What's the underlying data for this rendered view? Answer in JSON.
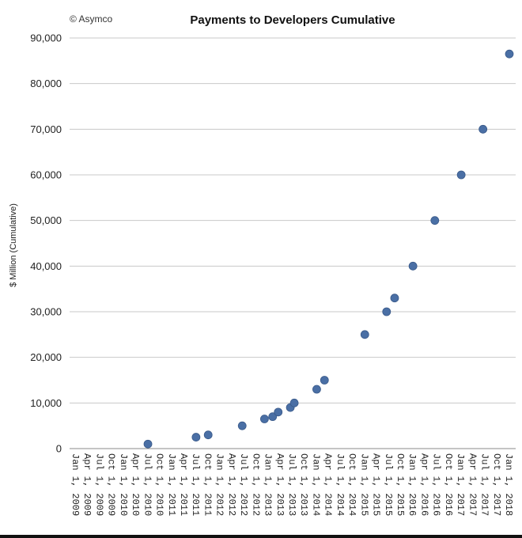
{
  "watermark": "© Asymco",
  "chart_data": {
    "type": "scatter",
    "title": "Payments to Developers Cumulative",
    "xlabel": "",
    "ylabel": "$ Million (Cumulative)",
    "ylim": [
      0,
      90000
    ],
    "y_ticks": [
      "0",
      "10,000",
      "20,000",
      "30,000",
      "40,000",
      "50,000",
      "60,000",
      "70,000",
      "80,000",
      "90,000"
    ],
    "y_tick_values": [
      0,
      10000,
      20000,
      30000,
      40000,
      50000,
      60000,
      70000,
      80000,
      90000
    ],
    "x_ticks": [
      "Jan 1, 2009",
      "Apr 1, 2009",
      "Jul 1, 2009",
      "Oct 1, 2009",
      "Jan 1, 2010",
      "Apr 1, 2010",
      "Jul 1, 2010",
      "Oct 1, 2010",
      "Jan 1, 2011",
      "Apr 1, 2011",
      "Jul 1, 2011",
      "Oct 1, 2011",
      "Jan 1, 2012",
      "Apr 1, 2012",
      "Jul 1, 2012",
      "Oct 1, 2012",
      "Jan 1, 2013",
      "Apr 1, 2013",
      "Jul 1, 2013",
      "Oct 1, 2013",
      "Jan 1, 2014",
      "Apr 1, 2014",
      "Jul 1, 2014",
      "Oct 1, 2014",
      "Jan 1, 2015",
      "Apr 1, 2015",
      "Jul 1, 2015",
      "Oct 1, 2015",
      "Jan 1, 2016",
      "Apr 1, 2016",
      "Jul 1, 2016",
      "Oct 1, 2016",
      "Jan 1, 2017",
      "Apr 1, 2017",
      "Jul 1, 2017",
      "Oct 1, 2017",
      "Jan 1, 2018"
    ],
    "grid": true,
    "point_color": "#4a6fa5",
    "series": [
      {
        "points": [
          {
            "x": "2010-07-01",
            "y": 1000
          },
          {
            "x": "2011-07-01",
            "y": 2500
          },
          {
            "x": "2011-10-01",
            "y": 3000
          },
          {
            "x": "2012-06-15",
            "y": 5000
          },
          {
            "x": "2012-12-01",
            "y": 6500
          },
          {
            "x": "2013-02-01",
            "y": 7000
          },
          {
            "x": "2013-03-15",
            "y": 8000
          },
          {
            "x": "2013-06-15",
            "y": 9000
          },
          {
            "x": "2013-07-15",
            "y": 10000
          },
          {
            "x": "2014-01-01",
            "y": 13000
          },
          {
            "x": "2014-03-01",
            "y": 15000
          },
          {
            "x": "2015-01-01",
            "y": 25000
          },
          {
            "x": "2015-06-15",
            "y": 30000
          },
          {
            "x": "2015-08-15",
            "y": 33000
          },
          {
            "x": "2016-01-01",
            "y": 40000
          },
          {
            "x": "2016-06-15",
            "y": 50000
          },
          {
            "x": "2017-01-01",
            "y": 60000
          },
          {
            "x": "2017-06-15",
            "y": 70000
          },
          {
            "x": "2018-01-01",
            "y": 86500
          }
        ]
      }
    ]
  }
}
